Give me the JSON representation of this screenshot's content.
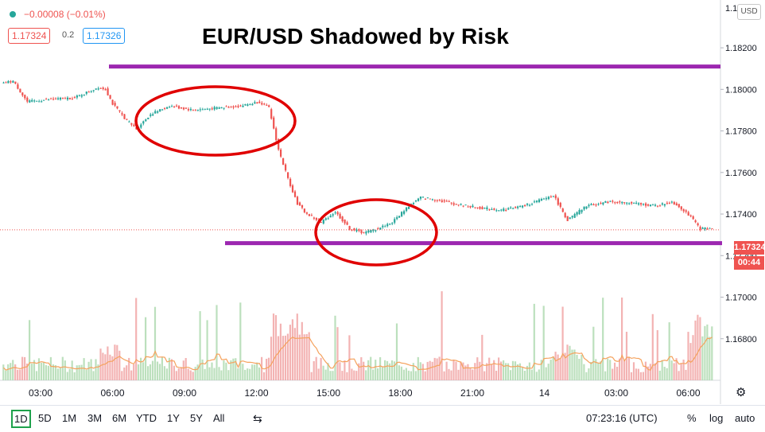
{
  "legend": {
    "change": "−0.00008 (−0.01%)",
    "bid": "1.17324",
    "spread": "0.2",
    "ask": "1.17326"
  },
  "title": "EUR/USD Shadowed by Risk",
  "currency": "USD",
  "price_axis": {
    "top_label": "1.1",
    "labels": [
      "1.18200",
      "1.18000",
      "1.17800",
      "1.17600",
      "1.17400",
      "1.17200",
      "1.17000",
      "1.16800"
    ]
  },
  "last_price_tag": "1.17324",
  "countdown_tag": "00:44",
  "time_axis": [
    "03:00",
    "06:00",
    "09:00",
    "12:00",
    "15:00",
    "18:00",
    "21:00",
    "14",
    "03:00",
    "06:00"
  ],
  "toolbar": {
    "timeframes": [
      "1D",
      "5D",
      "1M",
      "3M",
      "6M",
      "YTD",
      "1Y",
      "5Y",
      "All"
    ],
    "active_timeframe": "1D",
    "clock": "07:23:16 (UTC)",
    "percent": "%",
    "log": "log",
    "auto": "auto"
  },
  "colors": {
    "up": "#26a69a",
    "down": "#ef5350",
    "annotation_line": "#9c27b0",
    "annotation_ellipse": "#e00000",
    "volume_ma": "#f5a25d"
  },
  "chart_data": {
    "type": "candlestick",
    "symbol": "EUR/USD",
    "ylim": [
      1.166,
      1.1843
    ],
    "x_ticks": [
      "03:00",
      "06:00",
      "09:00",
      "12:00",
      "15:00",
      "18:00",
      "21:00",
      "14",
      "03:00",
      "06:00"
    ],
    "price_path": [
      [
        0,
        1.1803
      ],
      [
        4,
        1.1804
      ],
      [
        10,
        1.1794
      ],
      [
        18,
        1.1795
      ],
      [
        30,
        1.1796
      ],
      [
        40,
        1.1801
      ],
      [
        43,
        1.18
      ],
      [
        46,
        1.1793
      ],
      [
        52,
        1.1785
      ],
      [
        56,
        1.1781
      ],
      [
        62,
        1.1788
      ],
      [
        70,
        1.1792
      ],
      [
        80,
        1.179
      ],
      [
        90,
        1.1791
      ],
      [
        100,
        1.1792
      ],
      [
        108,
        1.1794
      ],
      [
        112,
        1.1791
      ],
      [
        116,
        1.1771
      ],
      [
        120,
        1.1757
      ],
      [
        124,
        1.1745
      ],
      [
        128,
        1.174
      ],
      [
        134,
        1.1736
      ],
      [
        140,
        1.1741
      ],
      [
        146,
        1.1733
      ],
      [
        152,
        1.1731
      ],
      [
        158,
        1.1733
      ],
      [
        164,
        1.1736
      ],
      [
        170,
        1.1743
      ],
      [
        176,
        1.1748
      ],
      [
        182,
        1.1747
      ],
      [
        190,
        1.1745
      ],
      [
        200,
        1.1743
      ],
      [
        210,
        1.1742
      ],
      [
        220,
        1.1744
      ],
      [
        232,
        1.1749
      ],
      [
        238,
        1.1737
      ],
      [
        246,
        1.1744
      ],
      [
        256,
        1.1746
      ],
      [
        266,
        1.1745
      ],
      [
        276,
        1.1744
      ],
      [
        282,
        1.1746
      ],
      [
        288,
        1.1741
      ],
      [
        294,
        1.1733
      ]
    ],
    "last_price": 1.17324,
    "annotations": {
      "resistance_line": 1.1811,
      "support_line": 1.1726
    }
  }
}
